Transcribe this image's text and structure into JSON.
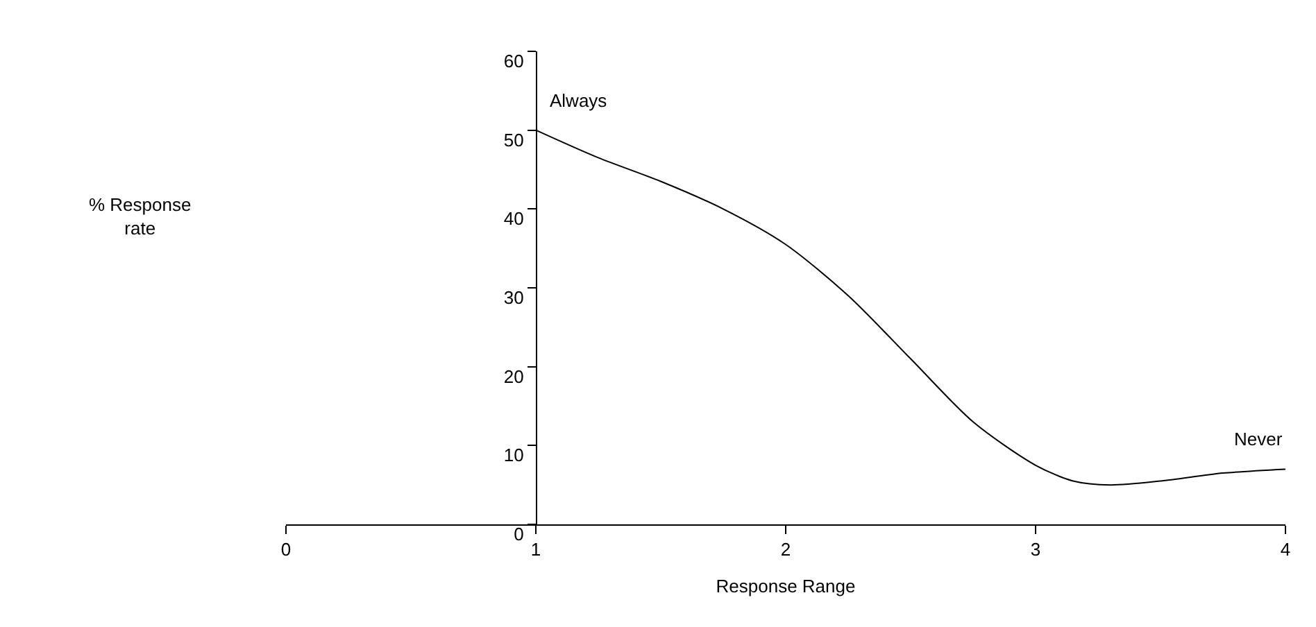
{
  "chart_data": {
    "type": "line",
    "xlabel": "Response Range",
    "ylabel": "% Response rate",
    "x": [
      1,
      1.25,
      1.5,
      1.75,
      2,
      2.25,
      2.5,
      2.75,
      3,
      3.15,
      3.3,
      3.5,
      3.75,
      4
    ],
    "series": [
      {
        "color": "#000000",
        "values": [
          50,
          46.5,
          43.5,
          40,
          35.5,
          29,
          21,
          13,
          7.5,
          5.5,
          5,
          5.5,
          6.5,
          7
        ]
      }
    ],
    "xlim": [
      0,
      4
    ],
    "xticks": [
      0,
      1,
      2,
      3,
      4
    ],
    "ylim": [
      0,
      60
    ],
    "yticks": [
      0,
      10,
      20,
      30,
      40,
      50,
      60
    ],
    "legend": false,
    "marker": "none",
    "line_style": "solid",
    "annotations": [
      "Always",
      "Never"
    ]
  }
}
